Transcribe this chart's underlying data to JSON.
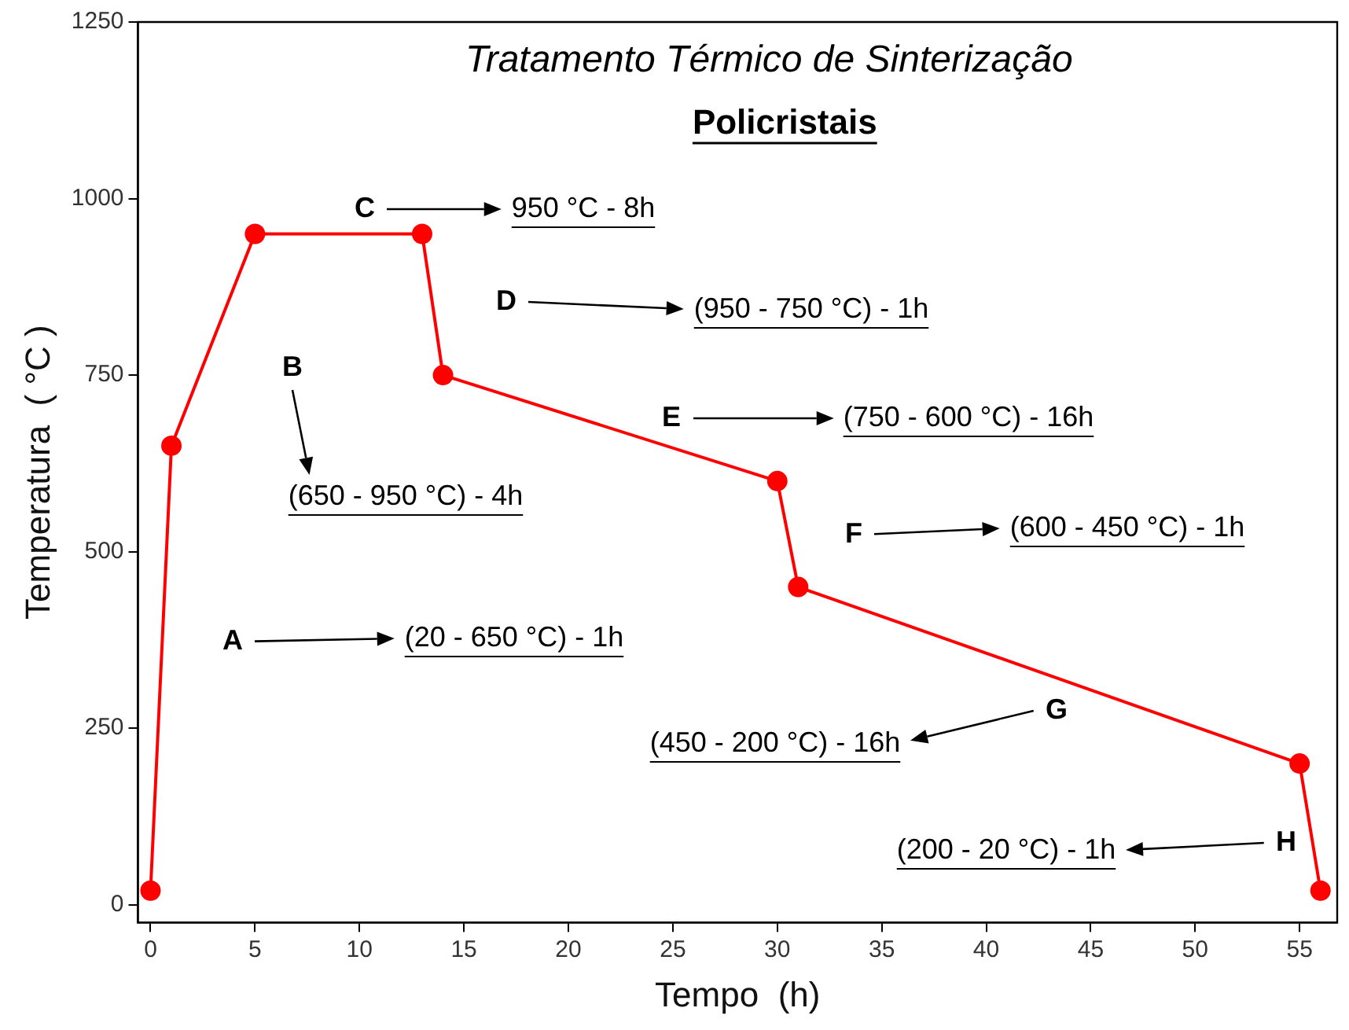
{
  "chart_data": {
    "type": "line",
    "title": "Tratamento Térmico de Sinterização",
    "subtitle": "Policristais",
    "xlabel": "Tempo  (h)",
    "ylabel": "Temperatura  ( °C )",
    "x": [
      0,
      1,
      5,
      13,
      14,
      30,
      31,
      55,
      56
    ],
    "values": [
      20,
      650,
      950,
      950,
      750,
      600,
      450,
      200,
      20
    ],
    "color": "#ff0000",
    "marker": "circle",
    "line_style": "solid",
    "xlim": [
      -0.6,
      56.8
    ],
    "xticks": [
      0,
      5,
      10,
      15,
      20,
      25,
      30,
      35,
      40,
      45,
      50,
      55
    ],
    "ylim": [
      -25,
      1250
    ],
    "yticks": [
      0,
      250,
      500,
      750,
      1000,
      1250
    ],
    "grid": false,
    "legend": false,
    "annotations": [
      "C",
      "950 °C - 8h",
      "D",
      "(950 - 750 °C) - 1h",
      "B",
      "(650 - 950 °C) - 4h",
      "E",
      "(750 - 600 °C) - 16h",
      "F",
      "(600 - 450 °C) - 1h",
      "A",
      "(20 - 650 °C) - 1h",
      "G",
      "(450 - 200 °C) - 16h",
      "H",
      "(200 - 20 °C) - 1h"
    ]
  }
}
